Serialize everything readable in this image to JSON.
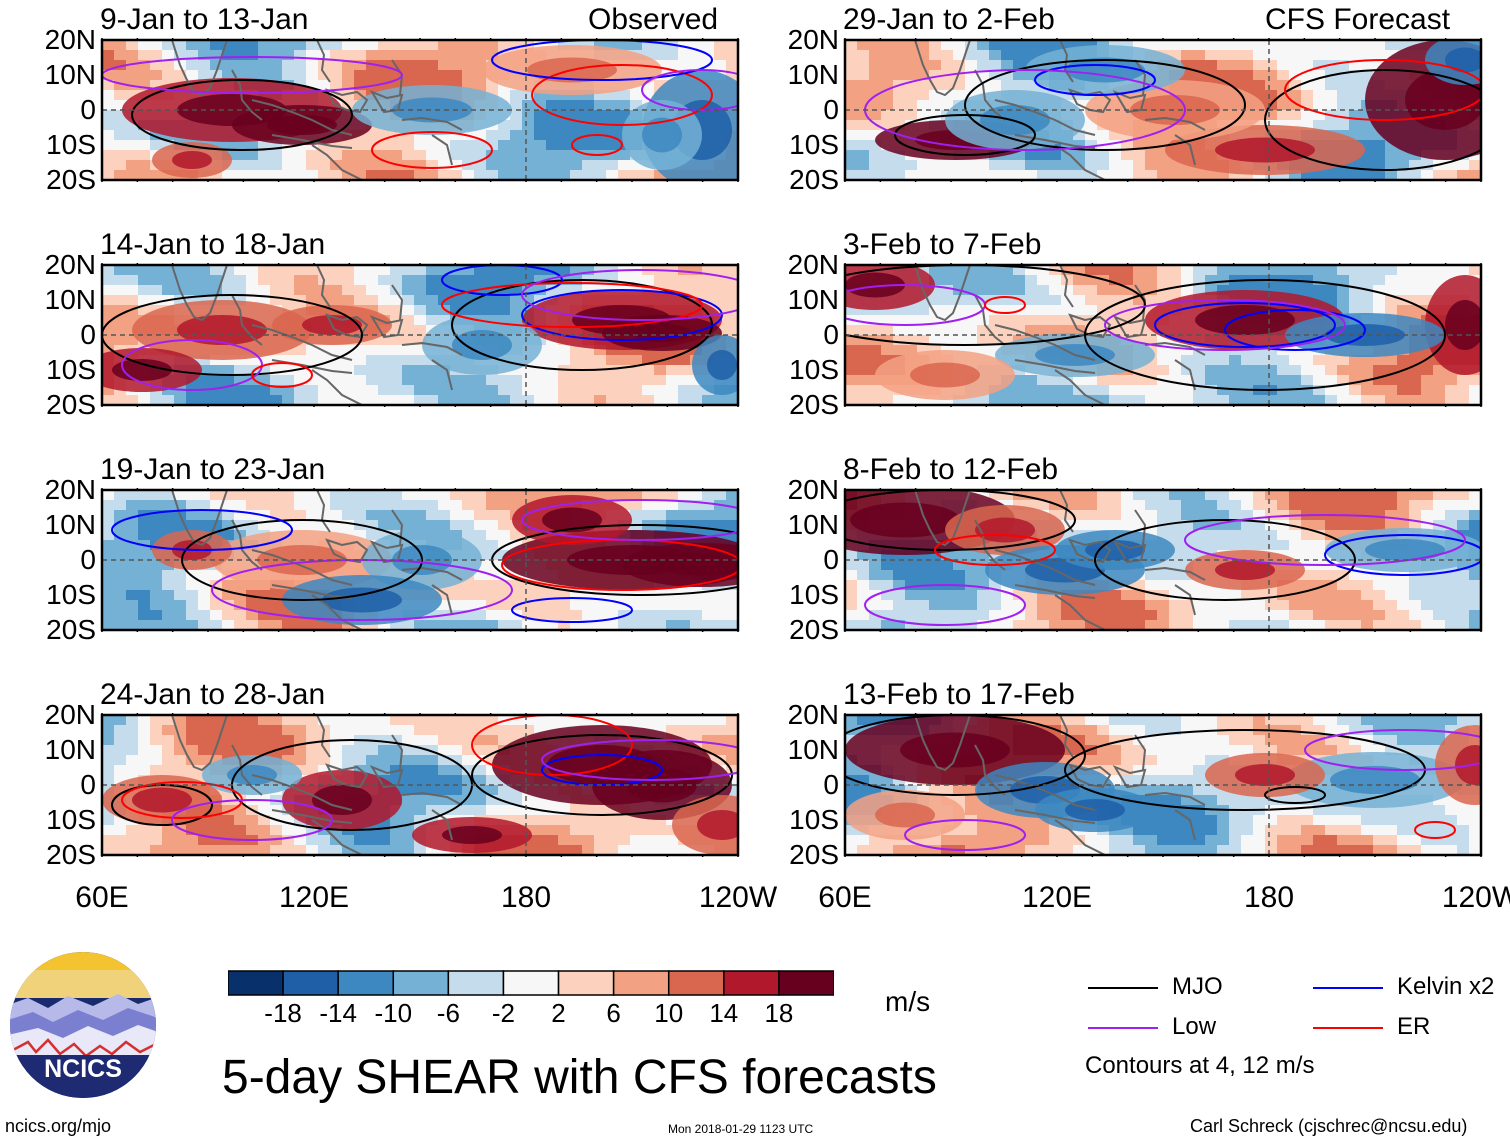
{
  "chart_data": {
    "type": "heatmap",
    "title": "5-day SHEAR with CFS forecasts",
    "variable": "SHEAR",
    "units": "m/s",
    "latitude_ticks": [
      "20N",
      "10N",
      "0",
      "10S",
      "20S"
    ],
    "longitude_ticks": [
      "60E",
      "120E",
      "180",
      "120W"
    ],
    "lat_range": [
      -20,
      20
    ],
    "lon_range": [
      60,
      240
    ],
    "colorbar": {
      "labels": [
        "-18",
        "-14",
        "-10",
        "-6",
        "-2",
        "2",
        "6",
        "10",
        "14",
        "18"
      ],
      "colors": [
        "#08306b",
        "#1f5fa8",
        "#3d88c1",
        "#74b1d5",
        "#c5dcec",
        "#f7f7f7",
        "#fcd2be",
        "#f3a183",
        "#d9664f",
        "#b2182b",
        "#67001f"
      ]
    },
    "columns": [
      {
        "tag": "Observed",
        "panels": [
          {
            "period": "9-Jan to 13-Jan"
          },
          {
            "period": "14-Jan to 18-Jan"
          },
          {
            "period": "19-Jan to 23-Jan"
          },
          {
            "period": "24-Jan to 28-Jan"
          }
        ]
      },
      {
        "tag": "CFS Forecast",
        "panels": [
          {
            "period": "29-Jan to 2-Feb"
          },
          {
            "period": "3-Feb to 7-Feb"
          },
          {
            "period": "8-Feb to 12-Feb"
          },
          {
            "period": "13-Feb to 17-Feb"
          }
        ]
      }
    ],
    "legend": {
      "entries": [
        {
          "label": "MJO",
          "color": "#000000"
        },
        {
          "label": "Kelvin x2",
          "color": "#0000ff"
        },
        {
          "label": "Low",
          "color": "#a020f0"
        },
        {
          "label": "ER",
          "color": "#ff0000"
        }
      ],
      "note": "Contours at 4, 12 m/s"
    }
  },
  "footer": {
    "logo_text": "NCICS",
    "website": "ncics.org/mjo",
    "timestamp": "Mon 2018-01-29 1123 UTC",
    "credit": "Carl Schreck (cjschrec@ncsu.edu)"
  },
  "colors": {
    "mjo": "#000000",
    "kelvin": "#0000ff",
    "low": "#a020f0",
    "er": "#ff0000",
    "coast": "#666666"
  }
}
